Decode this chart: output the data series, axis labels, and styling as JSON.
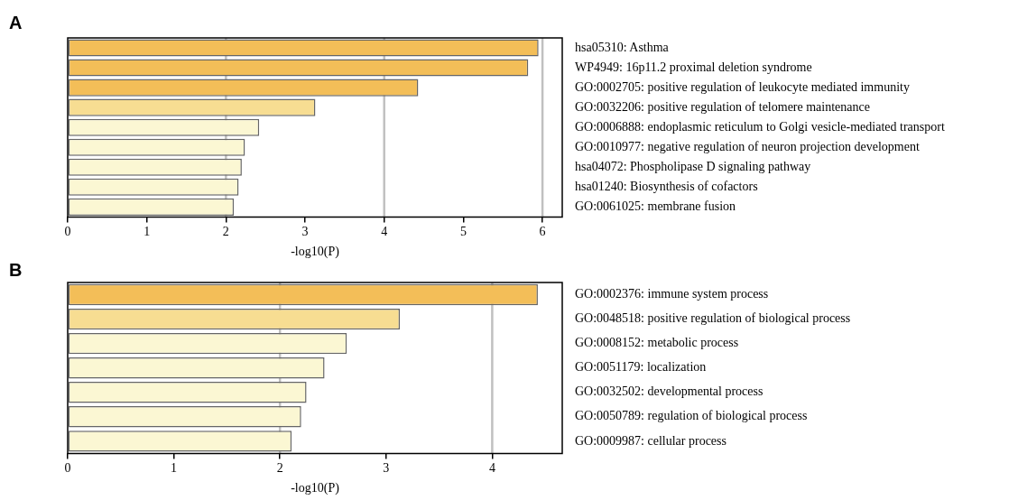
{
  "chart_data": [
    {
      "type": "bar",
      "orientation": "horizontal",
      "title": "A",
      "xlabel": "-log10(P)",
      "categories": [
        "hsa05310: Asthma",
        "WP4949: 16p11.2 proximal deletion syndrome",
        "GO:0002705: positive regulation of leukocyte mediated immunity",
        "GO:0032206: positive regulation of telomere maintenance",
        "GO:0006888: endoplasmic reticulum to Golgi vesicle-mediated transport",
        "GO:0010977: negative regulation of neuron projection development",
        "hsa04072: Phospholipase D signaling pathway",
        "hsa01240: Biosynthesis of cofactors",
        "GO:0061025: membrane fusion"
      ],
      "values": [
        5.95,
        5.82,
        4.43,
        3.13,
        2.42,
        2.24,
        2.2,
        2.16,
        2.1
      ],
      "colors": [
        "#f3be58",
        "#f3be58",
        "#f3be58",
        "#f7dd92",
        "#fbf7d3",
        "#fbf7d3",
        "#fbf7d3",
        "#fbf7d3",
        "#fbf7d3"
      ],
      "xlim": [
        0,
        6.25
      ],
      "xticks": [
        0,
        1,
        2,
        3,
        4,
        5,
        6
      ],
      "ref_lines": [
        {
          "axis": "x",
          "value": 2,
          "color": "#c0c0c0"
        },
        {
          "axis": "x",
          "value": 4,
          "color": "#c0c0c0"
        },
        {
          "axis": "x",
          "value": 6,
          "color": "#c0c0c0"
        }
      ],
      "legend": false
    },
    {
      "type": "bar",
      "orientation": "horizontal",
      "title": "B",
      "xlabel": "-log10(P)",
      "categories": [
        "GO:0002376: immune system process",
        "GO:0048518: positive regulation of biological process",
        "GO:0008152: metabolic process",
        "GO:0051179: localization",
        "GO:0032502: developmental process",
        "GO:0050789: regulation of biological process",
        "GO:0009987: cellular process"
      ],
      "values": [
        4.43,
        3.13,
        2.63,
        2.42,
        2.25,
        2.2,
        2.11
      ],
      "colors": [
        "#f3be58",
        "#f7dd92",
        "#fbf7d3",
        "#fbf7d3",
        "#fbf7d3",
        "#fbf7d3",
        "#fbf7d3"
      ],
      "xlim": [
        0,
        4.66
      ],
      "xticks": [
        0,
        1,
        2,
        3,
        4
      ],
      "ref_lines": [
        {
          "axis": "x",
          "value": 2,
          "color": "#c0c0c0"
        },
        {
          "axis": "x",
          "value": 4,
          "color": "#c0c0c0"
        }
      ],
      "legend": false
    }
  ]
}
